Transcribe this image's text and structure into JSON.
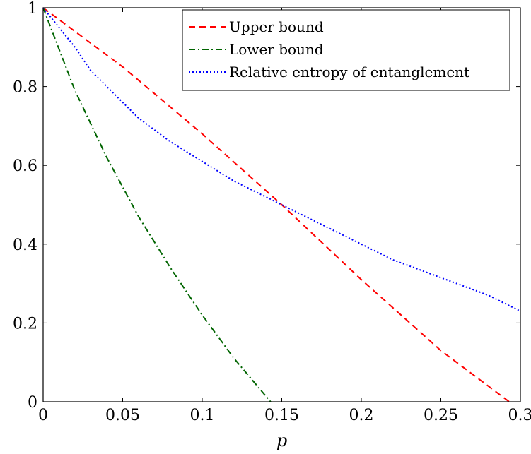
{
  "chart_data": {
    "type": "line",
    "title": "",
    "xlabel": "p",
    "ylabel": "",
    "xlim": [
      0,
      0.3
    ],
    "ylim": [
      0,
      1
    ],
    "xticks": [
      0,
      0.05,
      0.1,
      0.15,
      0.2,
      0.25,
      0.3
    ],
    "yticks": [
      0,
      0.2,
      0.4,
      0.6,
      0.8,
      1
    ],
    "xtick_labels": [
      "0",
      "0.05",
      "0.1",
      "0.15",
      "0.2",
      "0.25",
      "0.3"
    ],
    "ytick_labels": [
      "0",
      "0.2",
      "0.4",
      "0.6",
      "0.8",
      "1"
    ],
    "grid": false,
    "legend_position": "top-right",
    "series": [
      {
        "name": "Upper bound",
        "color": "#ff0000",
        "style": "dashed",
        "x": [
          0,
          0.05,
          0.1,
          0.15,
          0.2,
          0.25,
          0.293
        ],
        "y": [
          1,
          0.85,
          0.68,
          0.5,
          0.31,
          0.13,
          0
        ]
      },
      {
        "name": "Lower bound",
        "color": "#006400",
        "style": "dashdot",
        "x": [
          0,
          0.02,
          0.04,
          0.06,
          0.08,
          0.1,
          0.12,
          0.143
        ],
        "y": [
          1,
          0.79,
          0.62,
          0.47,
          0.34,
          0.22,
          0.11,
          0
        ]
      },
      {
        "name": "Relative entropy of entanglement",
        "color": "#0000ff",
        "style": "dotted",
        "x": [
          0,
          0.01,
          0.02,
          0.03,
          0.04,
          0.05,
          0.06,
          0.08,
          0.1,
          0.12,
          0.14,
          0.16,
          0.18,
          0.2,
          0.22,
          0.24,
          0.26,
          0.28,
          0.3
        ],
        "y": [
          1,
          0.95,
          0.9,
          0.84,
          0.8,
          0.76,
          0.72,
          0.66,
          0.61,
          0.56,
          0.52,
          0.48,
          0.44,
          0.4,
          0.36,
          0.33,
          0.3,
          0.27,
          0.23
        ]
      }
    ]
  }
}
